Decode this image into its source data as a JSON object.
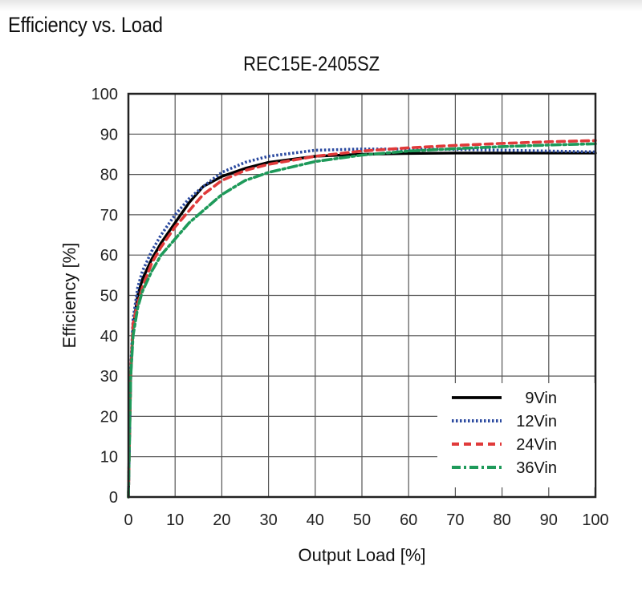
{
  "header": {
    "section_title": "Efficiency vs. Load"
  },
  "chart_data": {
    "type": "line",
    "title": "REC15E-2405SZ",
    "xlabel": "Output Load [%]",
    "ylabel": "Efficiency [%]",
    "xlim": [
      0,
      100
    ],
    "ylim": [
      0,
      100
    ],
    "xticks": [
      0,
      10,
      20,
      30,
      40,
      50,
      60,
      70,
      80,
      90,
      100
    ],
    "yticks": [
      0,
      10,
      20,
      30,
      40,
      50,
      60,
      70,
      80,
      90,
      100
    ],
    "grid": true,
    "legend_position": "bottom-right",
    "series": [
      {
        "name": "9Vin",
        "color": "#000000",
        "style": "solid",
        "x": [
          0,
          0.5,
          1,
          2,
          3,
          5,
          7,
          10,
          13,
          16,
          20,
          25,
          30,
          40,
          50,
          60,
          70,
          80,
          90,
          100
        ],
        "y": [
          0,
          30,
          42,
          50,
          54,
          59,
          63,
          68,
          73,
          77,
          79.5,
          81.5,
          83,
          84.5,
          85,
          85.2,
          85.3,
          85.3,
          85.3,
          85.3
        ]
      },
      {
        "name": "12Vin",
        "color": "#2b4aa0",
        "style": "dotted",
        "x": [
          0,
          0.5,
          1,
          2,
          3,
          5,
          7,
          10,
          13,
          16,
          20,
          25,
          30,
          40,
          50,
          60,
          70,
          80,
          90,
          100
        ],
        "y": [
          0,
          32,
          44,
          52,
          56,
          61,
          65,
          70,
          74,
          77,
          80.5,
          83,
          84.5,
          86,
          86.3,
          86.3,
          86.2,
          86,
          85.8,
          85.6
        ]
      },
      {
        "name": "24Vin",
        "color": "#e03a3a",
        "style": "dashed",
        "x": [
          0,
          0.5,
          1,
          2,
          3,
          5,
          7,
          10,
          13,
          16,
          20,
          25,
          30,
          40,
          50,
          60,
          70,
          80,
          90,
          100
        ],
        "y": [
          0,
          31,
          43,
          48,
          52,
          58,
          62,
          67,
          71,
          75,
          78.5,
          81,
          82.5,
          84.5,
          85.8,
          86.6,
          87.2,
          87.7,
          88.1,
          88.4
        ]
      },
      {
        "name": "36Vin",
        "color": "#1e9a5a",
        "style": "dashdot",
        "x": [
          0,
          0.5,
          1,
          2,
          3,
          5,
          7,
          10,
          13,
          16,
          20,
          25,
          30,
          40,
          50,
          60,
          70,
          80,
          90,
          100
        ],
        "y": [
          0,
          30,
          40,
          47,
          51,
          56,
          60,
          64,
          68,
          71,
          75,
          78.5,
          80.5,
          83.2,
          84.8,
          85.8,
          86.4,
          86.9,
          87.3,
          87.6
        ]
      }
    ]
  }
}
